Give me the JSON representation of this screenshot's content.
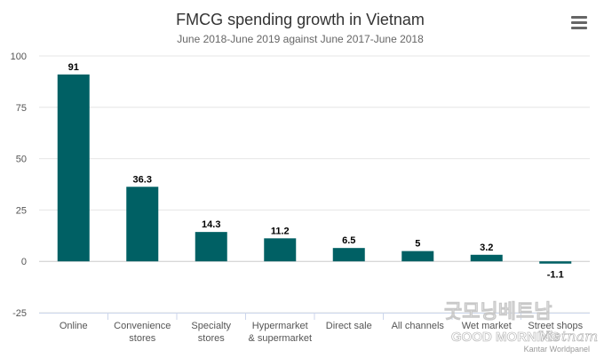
{
  "chart_data": {
    "type": "bar",
    "title": "FMCG spending growth in Vietnam",
    "subtitle": "June 2018-June 2019 against June 2017-June 2018",
    "categories": [
      [
        "Online"
      ],
      [
        "Convenience",
        "stores"
      ],
      [
        "Specialty",
        "stores"
      ],
      [
        "Hypermarket",
        "& supermarket"
      ],
      [
        "Direct sale"
      ],
      [
        "All channels"
      ],
      [
        "Wet market"
      ],
      [
        "Street shops"
      ]
    ],
    "values": [
      91,
      36.3,
      14.3,
      11.2,
      6.5,
      5,
      3.2,
      -1.1
    ],
    "ylim": [
      -25,
      100
    ],
    "yticks": [
      -25,
      0,
      25,
      50,
      75,
      100
    ],
    "grid": true,
    "legend": "none",
    "bar_color": "#006064"
  },
  "credit": "Kantar Worldpanel",
  "watermark": {
    "line1": "굿모닝베트남",
    "line2": "GOOD MORNING",
    "line3": "Vietnam"
  },
  "menu_icon": "hamburger-menu-icon"
}
